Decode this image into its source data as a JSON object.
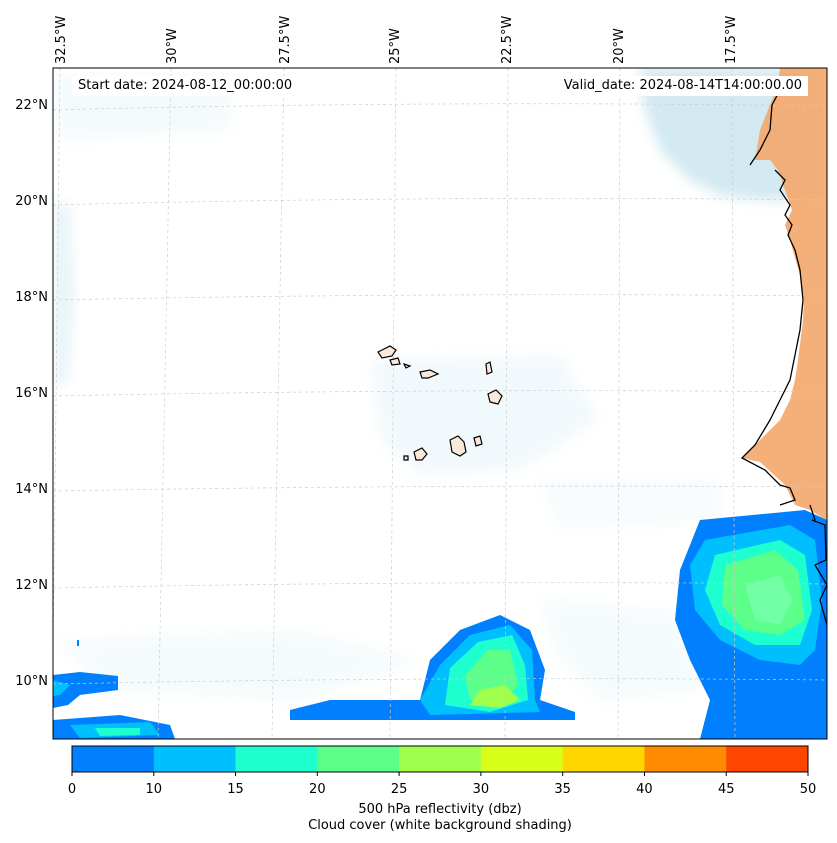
{
  "map": {
    "start_label": "Start date: 2024-08-12_00:00:00",
    "valid_label": "Valid_date: 2024-08-14T14:00:00.00",
    "lon_labels": [
      "32.5°W",
      "30°W",
      "27.5°W",
      "25°W",
      "22.5°W",
      "20°W",
      "17.5°W"
    ],
    "lat_labels": [
      "22°N",
      "20°N",
      "18°N",
      "16°N",
      "14°N",
      "12°N",
      "10°N"
    ],
    "colorbar": {
      "ticks": [
        "0",
        "10",
        "15",
        "20",
        "25",
        "30",
        "35",
        "40",
        "45",
        "50"
      ],
      "colors": [
        "#0080ff",
        "#00bfff",
        "#1effd0",
        "#5bff8a",
        "#a0ff4a",
        "#d8ff1a",
        "#ffd700",
        "#ff8c00",
        "#ff4500"
      ],
      "label": "500 hPa reflectivity (dbz)",
      "sublabel": "Cloud cover (white background shading)"
    },
    "colors": {
      "land_desert": "#f4a76a",
      "cloud_cover": "#add8e6",
      "coastline": "#000000",
      "grid": "#cccccc"
    }
  }
}
